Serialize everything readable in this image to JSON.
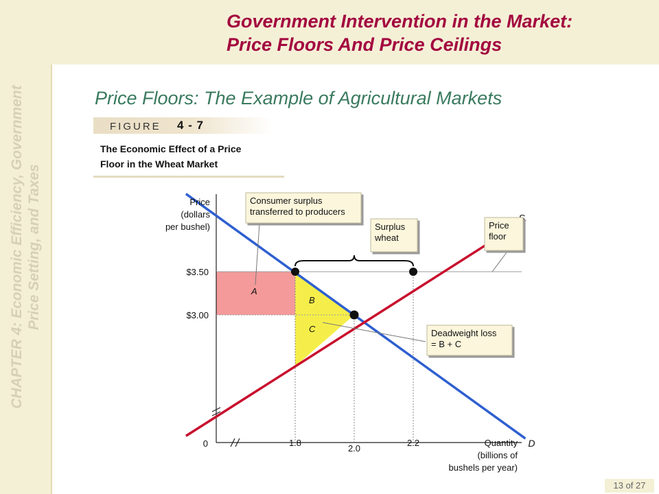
{
  "sidebar": {
    "chapter_line1": "CHAPTER 4:  Economic Efficiency, Government",
    "chapter_line2": "Price Setting, and Taxes"
  },
  "header": {
    "title_line1": "Government Intervention in the Market:",
    "title_line2": "Price Floors And Price Ceilings"
  },
  "subtitle": "Price Floors:  The Example of Agricultural Markets",
  "figure": {
    "word": "FIGURE",
    "number": "4 - 7",
    "caption_line1": "The Economic Effect of a Price",
    "caption_line2": "Floor in the Wheat Market"
  },
  "footer": {
    "page": "13 of 27"
  },
  "colors": {
    "title": "#a3063f",
    "subtitle": "#3a7a5e",
    "demand": "#2e5fd0",
    "supply": "#c8102e",
    "area_a": "#f49a9a",
    "area_bc": "#f5ee4a",
    "callout": "#fbf6dc"
  },
  "chart_data": {
    "type": "line",
    "y_axis_label": [
      "Price",
      "(dollars",
      "per bushel)"
    ],
    "x_axis_label": [
      "Quantity",
      "(billions of",
      "bushels per year)"
    ],
    "origin_label": "0",
    "y_ticks": [
      {
        "value": 3.5,
        "label": "$3.50"
      },
      {
        "value": 3.0,
        "label": "$3.00"
      }
    ],
    "x_ticks": [
      {
        "value": 1.8,
        "label": "1.8"
      },
      {
        "value": 2.0,
        "label": "2.0"
      },
      {
        "value": 2.2,
        "label": "2.2"
      }
    ],
    "series": [
      {
        "name": "D",
        "points": [
          [
            1.43,
            4.4
          ],
          [
            2.58,
            1.57
          ]
        ]
      },
      {
        "name": "S",
        "points": [
          [
            1.43,
            1.6
          ],
          [
            2.58,
            4.1
          ]
        ]
      }
    ],
    "price_floor": 3.5,
    "equilibrium": {
      "quantity": 2.0,
      "price": 3.0
    },
    "quantity_demanded_at_floor": 1.8,
    "quantity_supplied_at_floor": 2.2,
    "areas": [
      {
        "label": "A"
      },
      {
        "label": "B"
      },
      {
        "label": "C"
      }
    ],
    "callouts": {
      "consumer_surplus": [
        "Consumer surplus",
        "transferred to producers"
      ],
      "surplus_wheat": [
        "Surplus",
        "wheat"
      ],
      "price_floor": [
        "Price",
        "floor"
      ],
      "deadweight_loss": [
        "Deadweight loss",
        "= B + C"
      ]
    }
  }
}
